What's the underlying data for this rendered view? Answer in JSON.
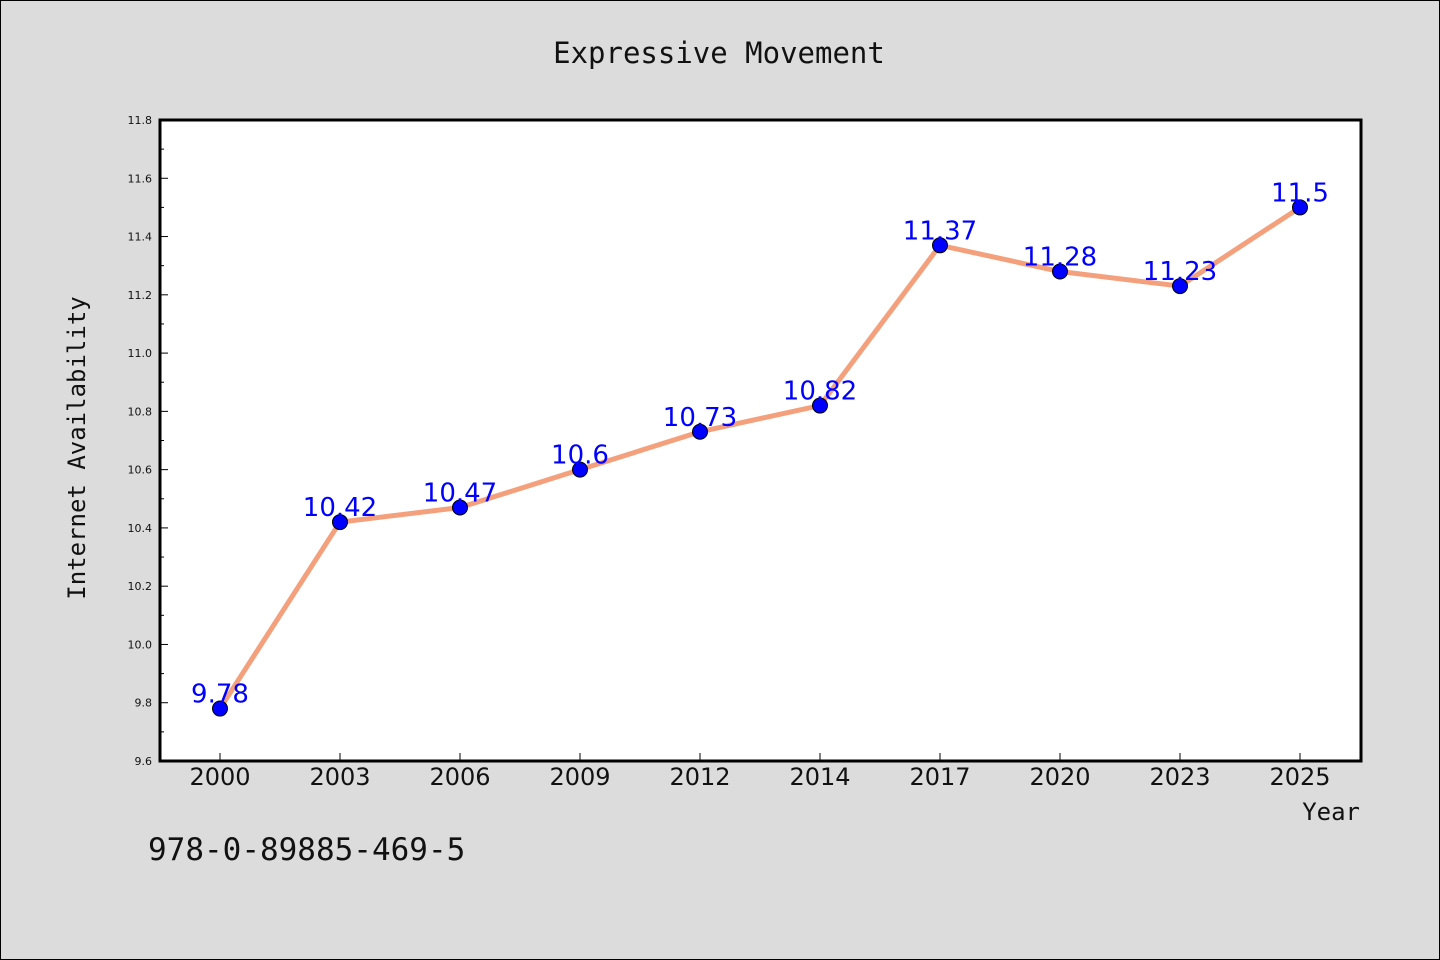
{
  "chart_data": {
    "type": "line",
    "title": "Expressive Movement",
    "xlabel": "Year",
    "ylabel": "Internet Availability",
    "categories": [
      "2000",
      "2003",
      "2006",
      "2009",
      "2012",
      "2014",
      "2017",
      "2020",
      "2023",
      "2025"
    ],
    "series": [
      {
        "values": [
          9.78,
          10.42,
          10.47,
          10.6,
          10.73,
          10.82,
          11.37,
          11.28,
          11.23,
          11.5
        ]
      }
    ],
    "data_labels": [
      "9.78",
      "10.42",
      "10.47",
      "10.6",
      "10.73",
      "10.82",
      "11.37",
      "11.28",
      "11.23",
      "11.5"
    ],
    "ylim": [
      9.6,
      11.8
    ],
    "yticks": [
      "9.6",
      "9.8",
      "10.0",
      "10.2",
      "10.4",
      "10.6",
      "10.8",
      "11.0",
      "11.2",
      "11.4",
      "11.6",
      "11.8"
    ],
    "grid": false,
    "line_color": "#f4a07c",
    "marker_color": "#0000ff",
    "label_color": "#0000ff"
  },
  "footer": {
    "code": "978-0-89885-469-5"
  }
}
